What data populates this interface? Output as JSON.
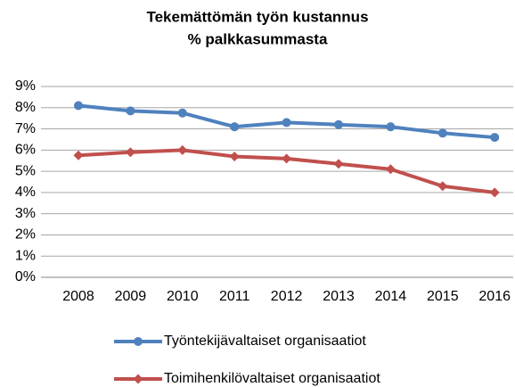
{
  "chart_data": {
    "type": "line",
    "title": [
      "Tekemättömän työn kustannus",
      "% palkkasummasta"
    ],
    "categories": [
      "2008",
      "2009",
      "2010",
      "2011",
      "2012",
      "2013",
      "2014",
      "2015",
      "2016"
    ],
    "series": [
      {
        "name": "Työntekijävaltaiset organisaatiot",
        "color": "#4f81bd",
        "marker": "circle",
        "values": [
          8.1,
          7.85,
          7.75,
          7.1,
          7.3,
          7.2,
          7.1,
          6.8,
          6.6
        ]
      },
      {
        "name": "Toimihenkilövaltaiset organisaatiot",
        "color": "#c0504d",
        "marker": "diamond",
        "values": [
          5.75,
          5.9,
          6.0,
          5.7,
          5.6,
          5.35,
          5.1,
          4.3,
          4.0
        ]
      }
    ],
    "ylim": [
      0,
      9
    ],
    "yticks": [
      {
        "value": 0,
        "label": "0%"
      },
      {
        "value": 1,
        "label": "1%"
      },
      {
        "value": 2,
        "label": "2%"
      },
      {
        "value": 3,
        "label": "3%"
      },
      {
        "value": 4,
        "label": "4%"
      },
      {
        "value": 5,
        "label": "5%"
      },
      {
        "value": 6,
        "label": "6%"
      },
      {
        "value": 7,
        "label": "7%"
      },
      {
        "value": 8,
        "label": "8%"
      },
      {
        "value": 9,
        "label": "9%"
      }
    ],
    "grid": true,
    "legend": "bottom"
  }
}
